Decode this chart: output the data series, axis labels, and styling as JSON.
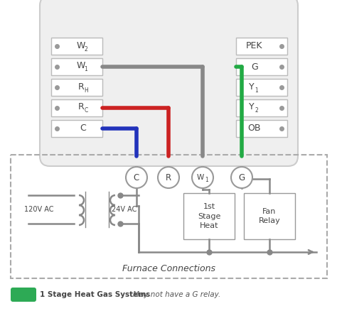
{
  "bg_color": "#ffffff",
  "wire_gray": "#888888",
  "wire_blue": "#2233bb",
  "wire_red": "#cc2222",
  "wire_green": "#22aa44",
  "terminal_left": [
    "W2",
    "W1",
    "RH",
    "RC",
    "C"
  ],
  "terminal_right": [
    "PEK",
    "G",
    "Y1",
    "Y2",
    "OB"
  ],
  "furnace_title": "Furnace Connections",
  "legend_color": "#2daa55",
  "legend_bold": "1 Stage Heat Gas Systems",
  "legend_normal": " ·  May not have a G relay.",
  "ac_label1": "120V AC",
  "ac_label2": "24V AC",
  "box1_label": "1st\nStage\nHeat",
  "box2_label": "Fan\nRelay",
  "therm_bg": "#efefef",
  "therm_border": "#cccccc",
  "term_border": "#bbbbbb",
  "circ_border": "#999999",
  "fur_border": "#aaaaaa",
  "text_dark": "#444444",
  "text_label": "#555555"
}
